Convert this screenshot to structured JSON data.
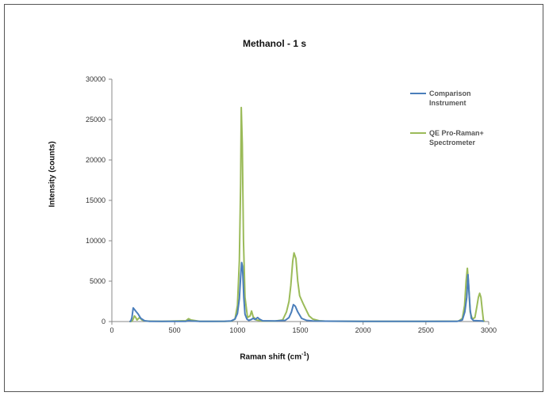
{
  "chart_data": {
    "type": "line",
    "title": "Methanol - 1 s",
    "xlabel": "Raman shift (cm",
    "xlabel_sup": "-1",
    "xlabel_end": ")",
    "ylabel": "Intensity (counts)",
    "xlim": [
      0,
      3000
    ],
    "ylim": [
      0,
      30000
    ],
    "xticks": [
      0,
      500,
      1000,
      1500,
      2000,
      2500,
      3000
    ],
    "yticks": [
      0,
      5000,
      10000,
      15000,
      20000,
      25000,
      30000
    ],
    "grid": false,
    "legend_position": "top-right",
    "series": [
      {
        "name": "Comparison Instrument",
        "legend_lines": [
          "Comparison",
          "Instrument"
        ],
        "color": "#4a7ebb",
        "points": [
          [
            140,
            0
          ],
          [
            150,
            50
          ],
          [
            160,
            500
          ],
          [
            170,
            1700
          ],
          [
            180,
            1500
          ],
          [
            195,
            1200
          ],
          [
            210,
            900
          ],
          [
            230,
            400
          ],
          [
            260,
            100
          ],
          [
            300,
            30
          ],
          [
            400,
            20
          ],
          [
            590,
            30
          ],
          [
            610,
            120
          ],
          [
            630,
            80
          ],
          [
            700,
            20
          ],
          [
            800,
            30
          ],
          [
            900,
            40
          ],
          [
            950,
            80
          ],
          [
            980,
            300
          ],
          [
            1000,
            1000
          ],
          [
            1015,
            2800
          ],
          [
            1025,
            5500
          ],
          [
            1033,
            7300
          ],
          [
            1040,
            6800
          ],
          [
            1050,
            3000
          ],
          [
            1060,
            900
          ],
          [
            1075,
            300
          ],
          [
            1090,
            150
          ],
          [
            1110,
            250
          ],
          [
            1125,
            400
          ],
          [
            1140,
            250
          ],
          [
            1160,
            500
          ],
          [
            1175,
            300
          ],
          [
            1200,
            100
          ],
          [
            1300,
            80
          ],
          [
            1380,
            150
          ],
          [
            1410,
            500
          ],
          [
            1430,
            1200
          ],
          [
            1445,
            2100
          ],
          [
            1460,
            1900
          ],
          [
            1480,
            1200
          ],
          [
            1510,
            400
          ],
          [
            1550,
            150
          ],
          [
            1600,
            80
          ],
          [
            1700,
            50
          ],
          [
            2000,
            30
          ],
          [
            2500,
            30
          ],
          [
            2750,
            30
          ],
          [
            2790,
            200
          ],
          [
            2810,
            1200
          ],
          [
            2825,
            3000
          ],
          [
            2835,
            5800
          ],
          [
            2842,
            4000
          ],
          [
            2852,
            1500
          ],
          [
            2862,
            400
          ],
          [
            2880,
            120
          ],
          [
            2950,
            80
          ],
          [
            2960,
            0
          ]
        ]
      },
      {
        "name": "QE Pro-Raman+ Spectrometer",
        "legend_lines": [
          "QE Pro-Raman+",
          "Spectrometer"
        ],
        "color": "#9bbb59",
        "points": [
          [
            140,
            0
          ],
          [
            160,
            30
          ],
          [
            170,
            300
          ],
          [
            180,
            700
          ],
          [
            190,
            500
          ],
          [
            200,
            200
          ],
          [
            220,
            500
          ],
          [
            240,
            200
          ],
          [
            270,
            60
          ],
          [
            400,
            20
          ],
          [
            590,
            100
          ],
          [
            610,
            350
          ],
          [
            630,
            200
          ],
          [
            700,
            30
          ],
          [
            900,
            20
          ],
          [
            950,
            50
          ],
          [
            980,
            300
          ],
          [
            1000,
            2000
          ],
          [
            1015,
            7500
          ],
          [
            1025,
            17000
          ],
          [
            1030,
            26500
          ],
          [
            1038,
            22000
          ],
          [
            1048,
            10000
          ],
          [
            1060,
            3000
          ],
          [
            1080,
            500
          ],
          [
            1100,
            700
          ],
          [
            1112,
            1300
          ],
          [
            1125,
            600
          ],
          [
            1150,
            200
          ],
          [
            1200,
            80
          ],
          [
            1300,
            60
          ],
          [
            1360,
            200
          ],
          [
            1390,
            1200
          ],
          [
            1410,
            2500
          ],
          [
            1425,
            4500
          ],
          [
            1440,
            7500
          ],
          [
            1450,
            8500
          ],
          [
            1465,
            7800
          ],
          [
            1480,
            5000
          ],
          [
            1495,
            3200
          ],
          [
            1520,
            2300
          ],
          [
            1545,
            1500
          ],
          [
            1570,
            700
          ],
          [
            1600,
            300
          ],
          [
            1650,
            100
          ],
          [
            1700,
            50
          ],
          [
            2000,
            20
          ],
          [
            2500,
            20
          ],
          [
            2760,
            50
          ],
          [
            2790,
            400
          ],
          [
            2808,
            2000
          ],
          [
            2820,
            5000
          ],
          [
            2830,
            6600
          ],
          [
            2840,
            4500
          ],
          [
            2852,
            1200
          ],
          [
            2870,
            300
          ],
          [
            2890,
            500
          ],
          [
            2905,
            1800
          ],
          [
            2918,
            3000
          ],
          [
            2928,
            3500
          ],
          [
            2938,
            3000
          ],
          [
            2948,
            1500
          ],
          [
            2958,
            200
          ],
          [
            2965,
            0
          ]
        ]
      }
    ]
  }
}
